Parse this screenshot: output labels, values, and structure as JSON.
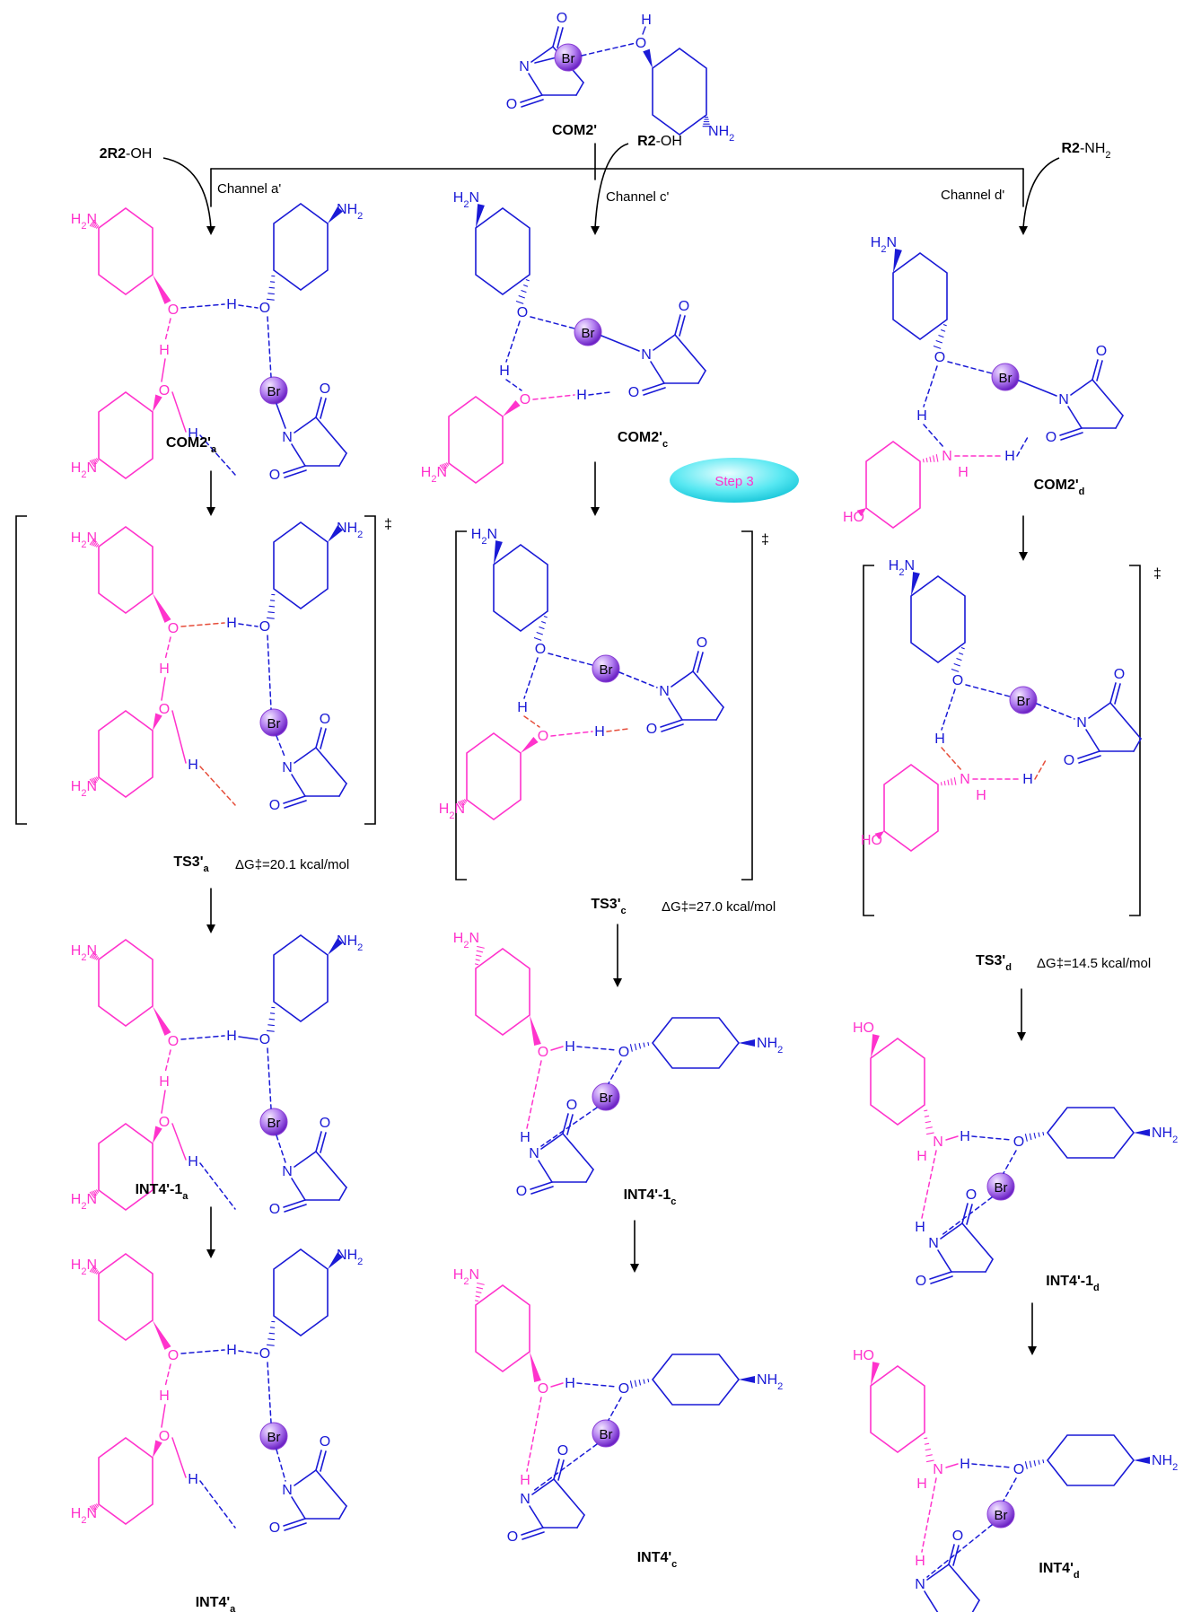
{
  "colors": {
    "reactant": "#1a1ad6",
    "partner": "#ff33cc",
    "ts_bond": "#e64d3a",
    "black": "#000000",
    "br_light": "#d9b8ff",
    "br_dark": "#8a3fd6",
    "step_light": "#b9fbff",
    "step_dark": "#22d6e6"
  },
  "atoms": {
    "br": "Br",
    "o": "O",
    "h": "H",
    "n": "N",
    "nh2_n": "H",
    "nh2_sub": "2",
    "nh2_pre": "N",
    "h2n_h": "H",
    "h2n_sub": "2",
    "h2n_n": "N",
    "ho": "HO"
  },
  "top": {
    "label": "COM2'",
    "r2oh_left": {
      "coef": "2",
      "bold": "R2",
      "rest": "-OH"
    },
    "r2oh_mid": {
      "bold": "R2",
      "rest": "-OH"
    },
    "r2nh2": {
      "bold": "R2",
      "rest": "-NH",
      "sub": "2"
    }
  },
  "channels": [
    "Channel a'",
    "Channel c'",
    "Channel d'"
  ],
  "step_label": "Step 3",
  "dagger": "‡",
  "columns": [
    {
      "com": {
        "main": "COM2'",
        "sub": "a"
      },
      "ts": {
        "main": "TS3'",
        "sub": "a",
        "dg_prefix": "ΔG",
        "dg_value": "=20.1 kcal/mol"
      },
      "int1": {
        "main": "INT4'-1",
        "sub": "a"
      },
      "int": {
        "main": "INT4'",
        "sub": "a"
      }
    },
    {
      "com": {
        "main": "COM2'",
        "sub": "c"
      },
      "ts": {
        "main": "TS3'",
        "sub": "c",
        "dg_prefix": "ΔG",
        "dg_value": "=27.0 kcal/mol"
      },
      "int1": {
        "main": "INT4'-1",
        "sub": "c"
      },
      "int": {
        "main": "INT4'",
        "sub": "c"
      }
    },
    {
      "com": {
        "main": "COM2'",
        "sub": "d"
      },
      "ts": {
        "main": "TS3'",
        "sub": "d",
        "dg_prefix": "ΔG",
        "dg_value": "=14.5 kcal/mol"
      },
      "int1": {
        "main": "INT4'-1",
        "sub": "d"
      },
      "int": {
        "main": "INT4'",
        "sub": "d"
      }
    }
  ]
}
